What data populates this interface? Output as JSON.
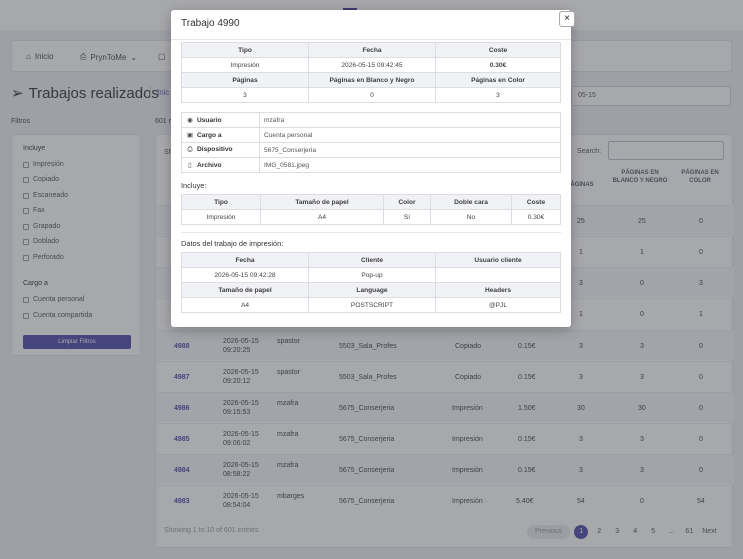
{
  "background": {
    "nav": [
      {
        "label": "Inicio",
        "icon": "home-icon"
      },
      {
        "label": "PrynToMe",
        "icon": "printer-icon"
      }
    ],
    "page_title": "Trabajos realizados",
    "breadcrumb": "Inic",
    "date_value": "05-15",
    "filters": {
      "title": "Filtros",
      "group1": "Incluye",
      "group1_items": [
        "Impresión",
        "Copiado",
        "Escaneado",
        "Fax",
        "Grapado",
        "Doblado",
        "Perforado"
      ],
      "group2": "Cargo a",
      "group2_items": [
        "Cuenta personal",
        "Cuenta compartida"
      ],
      "clear_button": "Limpiar Filtros"
    },
    "table": {
      "count_label": "601 r",
      "show_label": "Sh",
      "search_label": "Search:",
      "headers": [
        "PÁGINAS",
        "PÁGINAS EN BLANCO Y NEGRO",
        "PÁGINAS EN COLOR"
      ],
      "top_rows": [
        [
          "25",
          "25",
          "0"
        ],
        [
          "1",
          "1",
          "0"
        ],
        [
          "3",
          "0",
          "3"
        ],
        [
          "1",
          "0",
          "1"
        ]
      ],
      "rows": [
        {
          "id": "4988",
          "date": "2026-05-15",
          "time": "09:20:25",
          "user": "spastor",
          "device": "5503_Sala_Profes",
          "type": "Copiado",
          "cost": "0.15€",
          "pages": "3",
          "bw": "3",
          "color": "0"
        },
        {
          "id": "4987",
          "date": "2026-05-15",
          "time": "09:20:12",
          "user": "spastor",
          "device": "5503_Sala_Profes",
          "type": "Copiado",
          "cost": "0.15€",
          "pages": "3",
          "bw": "3",
          "color": "0"
        },
        {
          "id": "4986",
          "date": "2026-05-15",
          "time": "09:15:53",
          "user": "mzafra",
          "device": "5675_Conserjeria",
          "type": "Impresión",
          "cost": "1.50€",
          "pages": "30",
          "bw": "30",
          "color": "0"
        },
        {
          "id": "4985",
          "date": "2026-05-15",
          "time": "09:06:02",
          "user": "mzafra",
          "device": "5675_Conserjeria",
          "type": "Impresión",
          "cost": "0.15€",
          "pages": "3",
          "bw": "3",
          "color": "0"
        },
        {
          "id": "4984",
          "date": "2026-05-15",
          "time": "08:58:22",
          "user": "mzafra",
          "device": "5675_Conserjeria",
          "type": "Impresión",
          "cost": "0.15€",
          "pages": "3",
          "bw": "3",
          "color": "0"
        },
        {
          "id": "4983",
          "date": "2026-05-15",
          "time": "08:54:04",
          "user": "mbarges",
          "device": "5675_Conserjeria",
          "type": "Impresión",
          "cost": "5.40€",
          "pages": "54",
          "bw": "0",
          "color": "54"
        }
      ],
      "footer_info": "Showing 1 to 10 of 601 entries",
      "pager": [
        "Previous",
        "1",
        "2",
        "3",
        "4",
        "5",
        "...",
        "61",
        "Next"
      ]
    }
  },
  "modal": {
    "title": "Trabajo 4990",
    "close": "×",
    "summary": {
      "h1": [
        "Tipo",
        "Fecha",
        "Coste"
      ],
      "v1": [
        "Impresión",
        "2026-05-15 09:42:45",
        "0.30€"
      ],
      "h2": [
        "Páginas",
        "Páginas en Blanco y Negro",
        "Páginas en Color"
      ],
      "v2": [
        "3",
        "0",
        "3"
      ]
    },
    "details": [
      {
        "icon": "user-circle-icon",
        "glyph": "◉",
        "key": "Usuario",
        "value": "mzafra"
      },
      {
        "icon": "wallet-icon",
        "glyph": "▣",
        "key": "Cargo a",
        "value": "Cuenta personal"
      },
      {
        "icon": "printer-icon",
        "glyph": "⎙",
        "key": "Dispositivo",
        "value": "5675_Conserjeria"
      },
      {
        "icon": "file-icon",
        "glyph": "▯",
        "key": "Archivo",
        "value": "IMG_0581.jpeg"
      }
    ],
    "includes": {
      "label": "Incluye:",
      "headers": [
        "Tipo",
        "Tamaño de papel",
        "Color",
        "Doble cara",
        "Coste"
      ],
      "values": [
        "Impresión",
        "A4",
        "Sí",
        "No",
        "0.30€"
      ]
    },
    "print_data": {
      "label": "Datos del trabajo de impresión:",
      "h1": [
        "Fecha",
        "Cliente",
        "Usuario cliente"
      ],
      "v1": [
        "2026-05-15 09:42:28",
        "Pop-up",
        ""
      ],
      "h2": [
        "Tamaño de papel",
        "Language",
        "Headers"
      ],
      "v2": [
        "A4",
        "POSTSCRIPT",
        "@PJL"
      ]
    },
    "colors": {
      "accent": "#4e49a8",
      "cost_green": "#1ea84a"
    }
  }
}
